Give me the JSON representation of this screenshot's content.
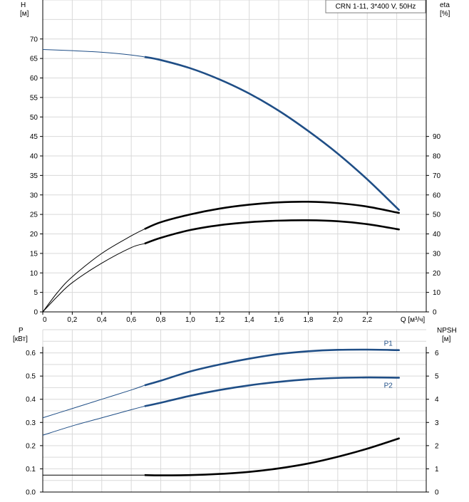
{
  "chart_data": [
    {
      "type": "line",
      "title": "CRN 1-11, 3*400 V, 50Hz",
      "xlabel": "Q [м³/ч]",
      "x_ticks": [
        "0",
        "0,2",
        "0,4",
        "0,6",
        "0,8",
        "1,0",
        "1,2",
        "1,4",
        "1,6",
        "1,8",
        "2,0",
        "2,2"
      ],
      "xlim": [
        0,
        2.6
      ],
      "ylabel_left": [
        "H",
        "[м]"
      ],
      "ylim_left": [
        0,
        80
      ],
      "y_ticks_left": [
        "0",
        "5",
        "10",
        "15",
        "20",
        "25",
        "30",
        "35",
        "40",
        "45",
        "50",
        "55",
        "60",
        "65",
        "70"
      ],
      "ylabel_right": [
        "eta",
        "[%]"
      ],
      "ylim_right": [
        0,
        160
      ],
      "y_ticks_right": [
        "0",
        "10",
        "20",
        "30",
        "40",
        "50",
        "60",
        "70",
        "80",
        "90"
      ],
      "grid": true,
      "series": [
        {
          "key": "H",
          "axis": "left",
          "color": "#1f4e86",
          "x": [
            0,
            0.2,
            0.4,
            0.6,
            0.69,
            0.8,
            1.0,
            1.2,
            1.4,
            1.6,
            1.8,
            2.0,
            2.2,
            2.4,
            2.6
          ],
          "y": [
            67.3,
            67.0,
            66.6,
            65.9,
            65.4,
            64.6,
            62.5,
            59.6,
            56.0,
            51.6,
            46.4,
            40.6,
            34.0,
            26.7,
            18.7
          ]
        },
        {
          "key": "eta",
          "axis": "right",
          "color": "#000000",
          "x": [
            0,
            0.1,
            0.2,
            0.4,
            0.6,
            0.69,
            0.8,
            1.0,
            1.2,
            1.4,
            1.6,
            1.8,
            2.0,
            2.2,
            2.4,
            2.6
          ],
          "y": [
            0,
            10,
            18,
            30,
            39,
            42.5,
            46,
            50,
            53,
            55,
            56.2,
            56.5,
            55.8,
            54,
            51,
            47
          ]
        },
        {
          "key": "eta-lower",
          "axis": "right",
          "color": "#000000",
          "x": [
            0,
            0.1,
            0.2,
            0.4,
            0.6,
            0.69,
            0.8,
            1.0,
            1.2,
            1.4,
            1.6,
            1.8,
            2.0,
            2.2,
            2.4,
            2.6
          ],
          "y": [
            0,
            8,
            15,
            25,
            33,
            35,
            38,
            42,
            44.5,
            46,
            46.8,
            47,
            46.5,
            45,
            42.5,
            39
          ]
        }
      ]
    },
    {
      "type": "line",
      "xlim": [
        0,
        2.6
      ],
      "ylabel_left": [
        "P",
        "[кВт]"
      ],
      "ylim_left": [
        0,
        0.7
      ],
      "y_ticks_left": [
        "0.0",
        "0.1",
        "0.2",
        "0.3",
        "0.4",
        "0.5",
        "0.6"
      ],
      "ylabel_right": [
        "NPSH",
        "[м]"
      ],
      "ylim_right": [
        0,
        7
      ],
      "y_ticks_right": [
        "0",
        "1",
        "2",
        "3",
        "4",
        "5",
        "6"
      ],
      "grid": true,
      "series": [
        {
          "name": "P1",
          "axis": "left",
          "color": "#1f4e86",
          "x": [
            0,
            0.2,
            0.4,
            0.6,
            0.69,
            0.8,
            1.0,
            1.2,
            1.4,
            1.6,
            1.8,
            2.0,
            2.2,
            2.4,
            2.6
          ],
          "y": [
            0.32,
            0.36,
            0.4,
            0.44,
            0.46,
            0.48,
            0.52,
            0.55,
            0.575,
            0.595,
            0.607,
            0.613,
            0.614,
            0.612,
            0.61
          ]
        },
        {
          "name": "P2",
          "axis": "left",
          "color": "#1f4e86",
          "x": [
            0,
            0.2,
            0.4,
            0.6,
            0.69,
            0.8,
            1.0,
            1.2,
            1.4,
            1.6,
            1.8,
            2.0,
            2.2,
            2.4,
            2.6
          ],
          "y": [
            0.245,
            0.285,
            0.32,
            0.355,
            0.37,
            0.385,
            0.415,
            0.44,
            0.46,
            0.475,
            0.486,
            0.492,
            0.494,
            0.493,
            0.49
          ]
        },
        {
          "key": "NPSH",
          "axis": "right",
          "color": "#000000",
          "x": [
            0,
            0.2,
            0.4,
            0.6,
            0.69,
            0.8,
            1.0,
            1.2,
            1.4,
            1.6,
            1.8,
            2.0,
            2.2,
            2.4,
            2.6
          ],
          "y": [
            0.73,
            0.73,
            0.73,
            0.73,
            0.73,
            0.72,
            0.73,
            0.78,
            0.87,
            1.02,
            1.23,
            1.52,
            1.87,
            2.28,
            2.75
          ]
        }
      ]
    }
  ]
}
